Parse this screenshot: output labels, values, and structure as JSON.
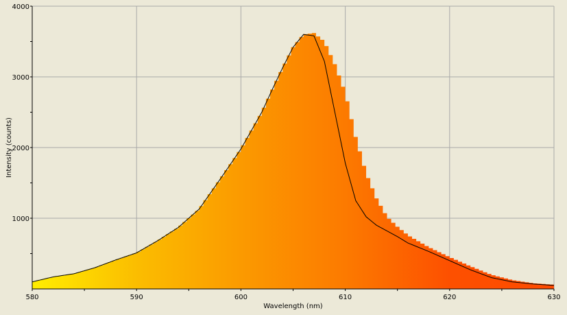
{
  "chart_data": {
    "type": "area",
    "title": "",
    "xlabel": "Wavelength (nm)",
    "ylabel": "Intensity (counts)",
    "xlim": [
      580,
      630
    ],
    "ylim": [
      0,
      4000
    ],
    "x_ticks": [
      580,
      590,
      600,
      610,
      620,
      630
    ],
    "y_ticks": [
      1000,
      2000,
      3000,
      4000
    ],
    "grid": true,
    "background_color": "#ece9d8",
    "plot_background_color": "#ece9d8",
    "grid_color": "#a9a9a9",
    "gradient_colors": [
      "#ffee00",
      "#fbbd00",
      "#fb9a00",
      "#fc7a00",
      "#fd5000",
      "#fe4a00"
    ],
    "series": [
      {
        "style": "filled-bars",
        "color": "gradient",
        "x": [
          580,
          582,
          584,
          586,
          588,
          590,
          592,
          594,
          596,
          598,
          600,
          602,
          603,
          604,
          605,
          606,
          607,
          608,
          609,
          610,
          611,
          612,
          613,
          614,
          615,
          616,
          618,
          620,
          622,
          624,
          626,
          628,
          630
        ],
        "values": [
          100,
          170,
          215,
          300,
          410,
          510,
          680,
          870,
          1130,
          1550,
          1980,
          2500,
          2820,
          3130,
          3420,
          3600,
          3620,
          3500,
          3180,
          2780,
          2150,
          1640,
          1280,
          1020,
          880,
          760,
          590,
          450,
          320,
          200,
          125,
          80,
          60
        ]
      },
      {
        "style": "line",
        "color": "#000000",
        "x": [
          580,
          582,
          584,
          586,
          588,
          590,
          592,
          594,
          596,
          598,
          600,
          602,
          603,
          604,
          605,
          606,
          607,
          608,
          609,
          610,
          611,
          612,
          613,
          614,
          615,
          616,
          618,
          620,
          622,
          624,
          626,
          628,
          630
        ],
        "values": [
          100,
          170,
          215,
          300,
          410,
          510,
          680,
          870,
          1130,
          1550,
          1980,
          2500,
          2820,
          3130,
          3420,
          3600,
          3580,
          3220,
          2500,
          1780,
          1250,
          1020,
          900,
          820,
          740,
          650,
          530,
          400,
          270,
          160,
          100,
          70,
          50
        ]
      }
    ]
  }
}
